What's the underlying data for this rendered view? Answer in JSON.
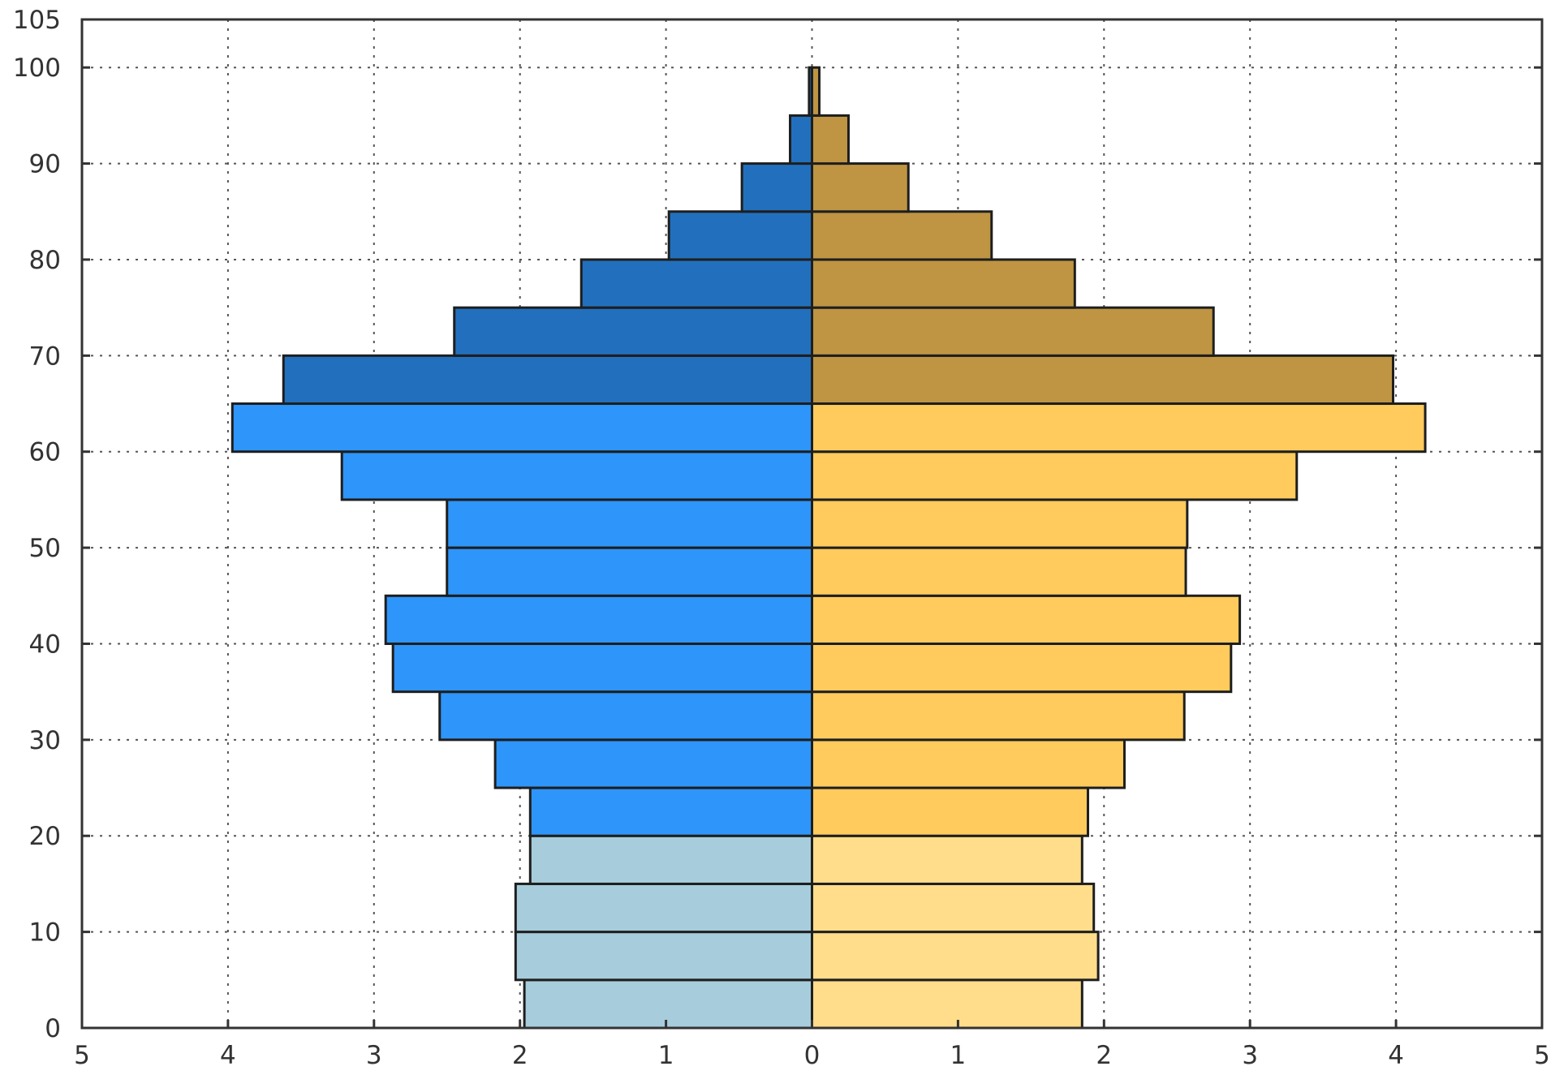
{
  "chart_data": {
    "type": "bar",
    "orientation": "horizontal",
    "title": "",
    "xlabel": "",
    "ylabel": "",
    "xlim": [
      -5,
      5
    ],
    "ylim": [
      0,
      105
    ],
    "grid": true,
    "x_ticks": [
      -5,
      -4,
      -3,
      -2,
      -1,
      0,
      1,
      2,
      3,
      4,
      5
    ],
    "x_tick_labels": [
      "5",
      "4",
      "3",
      "2",
      "1",
      "0",
      "1",
      "2",
      "3",
      "4",
      "5"
    ],
    "y_ticks": [
      0,
      10,
      20,
      30,
      40,
      50,
      60,
      70,
      80,
      90,
      100,
      105
    ],
    "y_tick_labels": [
      "0",
      "10",
      "20",
      "30",
      "40",
      "50",
      "60",
      "70",
      "80",
      "90",
      "100",
      "105"
    ],
    "bin_width": 5,
    "age_bins": [
      0,
      5,
      10,
      15,
      20,
      25,
      30,
      35,
      40,
      45,
      50,
      55,
      60,
      65,
      70,
      75,
      80,
      85,
      90,
      95,
      100
    ],
    "series": [
      {
        "side": "left",
        "values": [
          1.97,
          2.03,
          2.03,
          1.93,
          1.93,
          2.17,
          2.55,
          2.87,
          2.92,
          2.5,
          2.5,
          3.22,
          3.97,
          3.62,
          2.45,
          1.58,
          0.98,
          0.48,
          0.15,
          0.02,
          0.0
        ],
        "colors": [
          "#a7cddc",
          "#a7cddc",
          "#a7cddc",
          "#a7cddc",
          "#2e95fa",
          "#2e95fa",
          "#2e95fa",
          "#2e95fa",
          "#2e95fa",
          "#2e95fa",
          "#2e95fa",
          "#2e95fa",
          "#2e95fa",
          "#2270bd",
          "#2270bd",
          "#2270bd",
          "#2270bd",
          "#2270bd",
          "#2270bd",
          "#2270bd",
          "#2270bd"
        ]
      },
      {
        "side": "right",
        "values": [
          1.85,
          1.96,
          1.93,
          1.85,
          1.89,
          2.14,
          2.55,
          2.87,
          2.93,
          2.56,
          2.57,
          3.32,
          4.2,
          3.98,
          2.75,
          1.8,
          1.23,
          0.66,
          0.25,
          0.05,
          0.0
        ],
        "colors": [
          "#ffdd8a",
          "#ffdd8a",
          "#ffdd8a",
          "#ffdd8a",
          "#fecb5c",
          "#fecb5c",
          "#fecb5c",
          "#fecb5c",
          "#fecb5c",
          "#fecb5c",
          "#fecb5c",
          "#fecb5c",
          "#fecb5c",
          "#bf9543",
          "#bf9543",
          "#bf9543",
          "#bf9543",
          "#bf9543",
          "#bf9543",
          "#bf9543",
          "#bf9543"
        ]
      }
    ]
  }
}
